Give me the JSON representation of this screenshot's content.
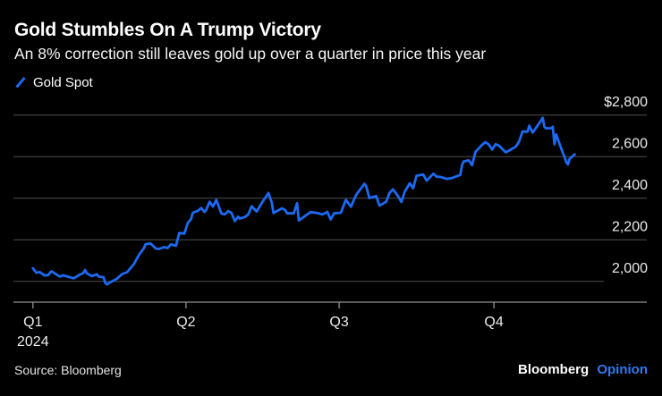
{
  "header": {
    "title": "Gold Stumbles On A Trump Victory",
    "subtitle": "An 8% correction still leaves gold up over a quarter in price this year"
  },
  "legend": {
    "label": "Gold Spot",
    "marker_color": "#1d69f1"
  },
  "chart_data": {
    "type": "line",
    "title": "Gold Stumbles On A Trump Victory",
    "subtitle": "An 8% correction still leaves gold up over a quarter in price this year",
    "x_unit": "day_of_year_2024",
    "xlim": [
      1,
      330
    ],
    "ylim": [
      1900,
      2900
    ],
    "grid": true,
    "legend_position": "top-left",
    "colors": {
      "line": "#1d69f1",
      "grid": "#4f4f4f",
      "axis": "#909090",
      "axis_text": "#ececec",
      "background": "#000000"
    },
    "y_ticks": [
      {
        "label": "$2,800",
        "value": 2800
      },
      {
        "label": "2,600",
        "value": 2600
      },
      {
        "label": "2,400",
        "value": 2400
      },
      {
        "label": "2,200",
        "value": 2200
      },
      {
        "label": "2,000",
        "value": 2000
      }
    ],
    "short_gridline_value": 2000,
    "x_ticks": [
      {
        "label": "Q1",
        "sub": "2024",
        "day": 1
      },
      {
        "label": "Q2",
        "day": 92
      },
      {
        "label": "Q3",
        "day": 183
      },
      {
        "label": "Q4",
        "day": 275
      }
    ],
    "series": [
      {
        "name": "Gold Spot",
        "color": "#1d69f1",
        "points": [
          [
            1,
            2063
          ],
          [
            3,
            2041
          ],
          [
            5,
            2045
          ],
          [
            8,
            2028
          ],
          [
            10,
            2030
          ],
          [
            12,
            2049
          ],
          [
            15,
            2033
          ],
          [
            17,
            2023
          ],
          [
            19,
            2029
          ],
          [
            22,
            2022
          ],
          [
            25,
            2015
          ],
          [
            26,
            2018
          ],
          [
            29,
            2033
          ],
          [
            31,
            2040
          ],
          [
            32,
            2055
          ],
          [
            33,
            2039
          ],
          [
            36,
            2025
          ],
          [
            39,
            2034
          ],
          [
            40,
            2024
          ],
          [
            43,
            2020
          ],
          [
            44,
            1992
          ],
          [
            45,
            1985
          ],
          [
            47,
            1995
          ],
          [
            51,
            2013
          ],
          [
            54,
            2035
          ],
          [
            57,
            2044
          ],
          [
            61,
            2083
          ],
          [
            64,
            2127
          ],
          [
            67,
            2160
          ],
          [
            68,
            2179
          ],
          [
            71,
            2182
          ],
          [
            74,
            2158
          ],
          [
            76,
            2156
          ],
          [
            79,
            2165
          ],
          [
            81,
            2160
          ],
          [
            83,
            2178
          ],
          [
            86,
            2171
          ],
          [
            88,
            2233
          ],
          [
            91,
            2230
          ],
          [
            93,
            2280
          ],
          [
            95,
            2300
          ],
          [
            96,
            2330
          ],
          [
            99,
            2339
          ],
          [
            101,
            2353
          ],
          [
            103,
            2334
          ],
          [
            104,
            2344
          ],
          [
            106,
            2383
          ],
          [
            108,
            2360
          ],
          [
            110,
            2392
          ],
          [
            113,
            2327
          ],
          [
            115,
            2322
          ],
          [
            117,
            2338
          ],
          [
            119,
            2330
          ],
          [
            121,
            2290
          ],
          [
            123,
            2311
          ],
          [
            124,
            2302
          ],
          [
            127,
            2310
          ],
          [
            129,
            2322
          ],
          [
            131,
            2361
          ],
          [
            134,
            2336
          ],
          [
            137,
            2377
          ],
          [
            141,
            2425
          ],
          [
            143,
            2378
          ],
          [
            144,
            2329
          ],
          [
            149,
            2351
          ],
          [
            151,
            2343
          ],
          [
            152,
            2327
          ],
          [
            156,
            2327
          ],
          [
            158,
            2376
          ],
          [
            159,
            2293
          ],
          [
            164,
            2322
          ],
          [
            166,
            2333
          ],
          [
            170,
            2329
          ],
          [
            173,
            2322
          ],
          [
            176,
            2334
          ],
          [
            178,
            2298
          ],
          [
            180,
            2327
          ],
          [
            184,
            2330
          ],
          [
            187,
            2392
          ],
          [
            190,
            2359
          ],
          [
            193,
            2415
          ],
          [
            198,
            2469
          ],
          [
            199,
            2459
          ],
          [
            201,
            2401
          ],
          [
            205,
            2410
          ],
          [
            207,
            2364
          ],
          [
            211,
            2383
          ],
          [
            213,
            2426
          ],
          [
            215,
            2443
          ],
          [
            218,
            2410
          ],
          [
            220,
            2382
          ],
          [
            222,
            2431
          ],
          [
            225,
            2472
          ],
          [
            227,
            2448
          ],
          [
            229,
            2508
          ],
          [
            233,
            2514
          ],
          [
            235,
            2484
          ],
          [
            239,
            2518
          ],
          [
            241,
            2503
          ],
          [
            243,
            2503
          ],
          [
            247,
            2493
          ],
          [
            250,
            2497
          ],
          [
            253,
            2506
          ],
          [
            255,
            2512
          ],
          [
            256,
            2558
          ],
          [
            257,
            2577
          ],
          [
            260,
            2582
          ],
          [
            262,
            2559
          ],
          [
            264,
            2622
          ],
          [
            268,
            2657
          ],
          [
            270,
            2670
          ],
          [
            272,
            2658
          ],
          [
            274,
            2634
          ],
          [
            276,
            2660
          ],
          [
            278,
            2653
          ],
          [
            282,
            2621
          ],
          [
            284,
            2629
          ],
          [
            288,
            2648
          ],
          [
            290,
            2673
          ],
          [
            292,
            2721
          ],
          [
            295,
            2720
          ],
          [
            296,
            2749
          ],
          [
            298,
            2716
          ],
          [
            300,
            2738
          ],
          [
            303,
            2774
          ],
          [
            304,
            2787
          ],
          [
            305,
            2744
          ],
          [
            306,
            2736
          ],
          [
            309,
            2737
          ],
          [
            310,
            2744
          ],
          [
            311,
            2659
          ],
          [
            312,
            2707
          ],
          [
            313,
            2684
          ],
          [
            316,
            2618
          ],
          [
            317,
            2598
          ],
          [
            318,
            2573
          ],
          [
            319,
            2563
          ],
          [
            320,
            2589
          ],
          [
            323,
            2611
          ]
        ]
      }
    ]
  },
  "footer": {
    "source": "Source: Bloomberg",
    "brand_first": "Bloomberg",
    "brand_second": "Opinion",
    "brand_second_color": "#3179f5"
  }
}
